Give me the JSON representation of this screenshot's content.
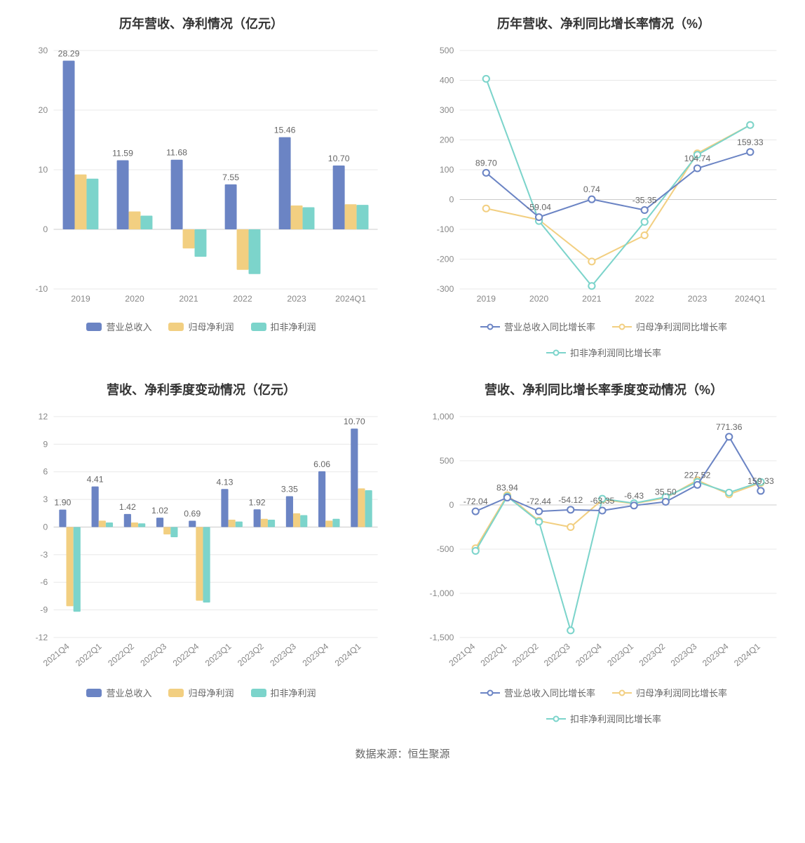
{
  "footer_text": "数据来源：恒生聚源",
  "colors": {
    "series1": "#6b84c4",
    "series2": "#f2cf81",
    "series3": "#7cd4cb",
    "grid": "#e8e8e8",
    "axis": "#cccccc",
    "text_axis": "#888888",
    "text_label": "#666666",
    "title": "#333333",
    "background": "#ffffff"
  },
  "chart1": {
    "type": "bar",
    "title": "历年营收、净利情况（亿元）",
    "categories": [
      "2019",
      "2020",
      "2021",
      "2022",
      "2023",
      "2024Q1"
    ],
    "ylim": [
      -10,
      30
    ],
    "ytick_step": 10,
    "bar_width": 0.22,
    "value_labels": [
      "28.29",
      "11.59",
      "11.68",
      "7.55",
      "15.46",
      "10.70"
    ],
    "series": [
      {
        "name": "营业总收入",
        "color": "#6b84c4",
        "values": [
          28.29,
          11.59,
          11.68,
          7.55,
          15.46,
          10.7
        ]
      },
      {
        "name": "归母净利润",
        "color": "#f2cf81",
        "values": [
          9.2,
          3.0,
          -3.2,
          -6.8,
          4.0,
          4.2
        ]
      },
      {
        "name": "扣非净利润",
        "color": "#7cd4cb",
        "values": [
          8.5,
          2.3,
          -4.6,
          -7.5,
          3.7,
          4.1
        ]
      }
    ],
    "legend": [
      "营业总收入",
      "归母净利润",
      "扣非净利润"
    ]
  },
  "chart2": {
    "type": "line",
    "title": "历年营收、净利同比增长率情况（%）",
    "categories": [
      "2019",
      "2020",
      "2021",
      "2022",
      "2023",
      "2024Q1"
    ],
    "ylim": [
      -300,
      500
    ],
    "ytick_step": 100,
    "value_labels": [
      "89.70",
      "-59.04",
      "0.74",
      "-35.35",
      "104.74",
      "159.33"
    ],
    "series": [
      {
        "name": "营业总收入同比增长率",
        "color": "#6b84c4",
        "values": [
          89.7,
          -59.04,
          0.74,
          -35.35,
          104.74,
          159.33
        ]
      },
      {
        "name": "归母净利润同比增长率",
        "color": "#f2cf81",
        "values": [
          -30,
          -68,
          -208,
          -120,
          155,
          250
        ]
      },
      {
        "name": "扣非净利润同比增长率",
        "color": "#7cd4cb",
        "values": [
          405,
          -72,
          -290,
          -75,
          150,
          250
        ]
      }
    ],
    "legend": [
      "营业总收入同比增长率",
      "归母净利润同比增长率",
      "扣非净利润同比增长率"
    ]
  },
  "chart3": {
    "type": "bar",
    "title": "营收、净利季度变动情况（亿元）",
    "categories": [
      "2021Q4",
      "2022Q1",
      "2022Q2",
      "2022Q3",
      "2022Q4",
      "2023Q1",
      "2023Q2",
      "2023Q3",
      "2023Q4",
      "2024Q1"
    ],
    "ylim": [
      -12,
      12
    ],
    "ytick_step": 3,
    "bar_width": 0.22,
    "rotate_x": true,
    "value_labels": [
      "1.90",
      "4.41",
      "1.42",
      "1.02",
      "0.69",
      "4.13",
      "1.92",
      "3.35",
      "6.06",
      "10.70"
    ],
    "series": [
      {
        "name": "营业总收入",
        "color": "#6b84c4",
        "values": [
          1.9,
          4.41,
          1.42,
          1.02,
          0.69,
          4.13,
          1.92,
          3.35,
          6.06,
          10.7
        ]
      },
      {
        "name": "归母净利润",
        "color": "#f2cf81",
        "values": [
          -8.6,
          0.7,
          0.5,
          -0.8,
          -8.0,
          0.8,
          0.9,
          1.5,
          0.7,
          4.2
        ]
      },
      {
        "name": "扣非净利润",
        "color": "#7cd4cb",
        "values": [
          -9.2,
          0.5,
          0.4,
          -1.1,
          -8.2,
          0.6,
          0.8,
          1.3,
          0.9,
          4.0
        ]
      }
    ],
    "legend": [
      "营业总收入",
      "归母净利润",
      "扣非净利润"
    ]
  },
  "chart4": {
    "type": "line",
    "title": "营收、净利同比增长率季度变动情况（%）",
    "categories": [
      "2021Q4",
      "2022Q1",
      "2022Q2",
      "2022Q3",
      "2022Q4",
      "2023Q1",
      "2023Q2",
      "2023Q3",
      "2023Q4",
      "2024Q1"
    ],
    "ylim": [
      -1500,
      1000
    ],
    "ytick_step": 500,
    "rotate_x": true,
    "value_labels": [
      "-72.04",
      "83.94",
      "-72.44",
      "-54.12",
      "-63.35",
      "-6.43",
      "35.50",
      "227.52",
      "771.36",
      "159.33"
    ],
    "series": [
      {
        "name": "营业总收入同比增长率",
        "color": "#6b84c4",
        "values": [
          -72.04,
          83.94,
          -72.44,
          -54.12,
          -63.35,
          -6.43,
          35.5,
          227.52,
          771.36,
          159.33
        ]
      },
      {
        "name": "归母净利润同比增长率",
        "color": "#f2cf81",
        "values": [
          -490,
          110,
          -180,
          -250,
          60,
          15,
          80,
          280,
          120,
          250
        ]
      },
      {
        "name": "扣非净利润同比增长率",
        "color": "#7cd4cb",
        "values": [
          -520,
          95,
          -190,
          -1420,
          70,
          20,
          90,
          260,
          140,
          260
        ]
      }
    ],
    "legend": [
      "营业总收入同比增长率",
      "归母净利润同比增长率",
      "扣非净利润同比增长率"
    ]
  }
}
